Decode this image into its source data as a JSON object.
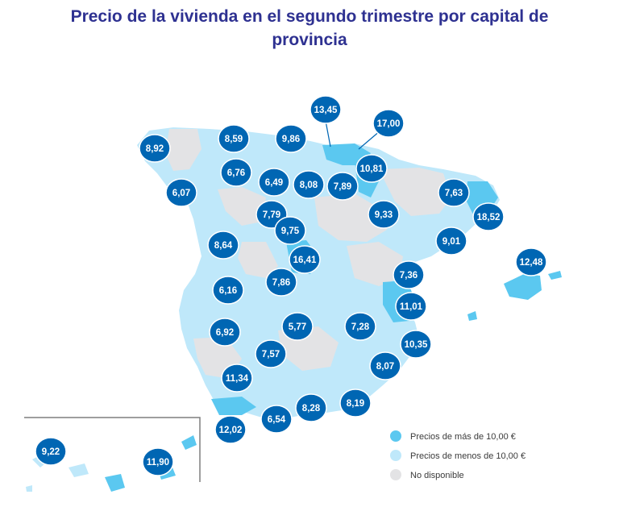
{
  "title_line1": "Precio de la vivienda en el segundo trimestre por capital de",
  "title_line2": "provincia",
  "colors": {
    "above": "#5bc8f0",
    "below": "#bfe8fa",
    "unavailable": "#e3e3e5",
    "bubble": "#0066b3",
    "title": "#2e3191"
  },
  "legend": [
    {
      "label": "Precios de más de 10,00 €",
      "category": "above"
    },
    {
      "label": "Precios de menos de 10,00 €",
      "category": "below"
    },
    {
      "label": "No disponible",
      "category": "unavailable"
    }
  ],
  "provinces": [
    {
      "value": "8,92"
    },
    {
      "value": "8,59"
    },
    {
      "value": "9,86"
    },
    {
      "value": "13,45"
    },
    {
      "value": "17,00"
    },
    {
      "value": "10,81"
    },
    {
      "value": "6,07"
    },
    {
      "value": "6,76"
    },
    {
      "value": "6,49"
    },
    {
      "value": "8,08"
    },
    {
      "value": "7,89"
    },
    {
      "value": "7,63"
    },
    {
      "value": "7,79"
    },
    {
      "value": "9,33"
    },
    {
      "value": "18,52"
    },
    {
      "value": "9,75"
    },
    {
      "value": "8,64"
    },
    {
      "value": "9,01"
    },
    {
      "value": "16,41"
    },
    {
      "value": "12,48"
    },
    {
      "value": "7,86"
    },
    {
      "value": "7,36"
    },
    {
      "value": "6,16"
    },
    {
      "value": "11,01"
    },
    {
      "value": "5,77"
    },
    {
      "value": "7,28"
    },
    {
      "value": "6,92"
    },
    {
      "value": "10,35"
    },
    {
      "value": "7,57"
    },
    {
      "value": "8,07"
    },
    {
      "value": "11,34"
    },
    {
      "value": "8,28"
    },
    {
      "value": "8,19"
    },
    {
      "value": "12,02"
    },
    {
      "value": "6,54"
    },
    {
      "value": "9,22"
    },
    {
      "value": "11,90"
    }
  ]
}
